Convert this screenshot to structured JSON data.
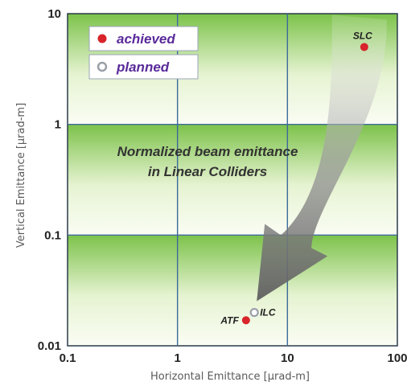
{
  "chart_data": {
    "type": "scatter",
    "title": "",
    "annotation": [
      "Normalized  beam  emittance",
      "in  Linear  Colliders"
    ],
    "xlabel": "Horizontal Emittance  [µrad-m]",
    "ylabel": "Vertical Emittance  [µrad-m]",
    "x_scale": "log",
    "y_scale": "log",
    "xlim": [
      0.1,
      100
    ],
    "ylim": [
      0.01,
      10
    ],
    "x_ticks": [
      {
        "value": 0.1,
        "label": "0.1"
      },
      {
        "value": 1,
        "label": "1"
      },
      {
        "value": 10,
        "label": "10"
      },
      {
        "value": 100,
        "label": "100"
      }
    ],
    "y_ticks": [
      {
        "value": 0.01,
        "label": "0.01"
      },
      {
        "value": 0.1,
        "label": "0.1"
      },
      {
        "value": 1,
        "label": "1"
      },
      {
        "value": 10,
        "label": "10"
      }
    ],
    "grid": true,
    "legend": {
      "position": "top-left",
      "entries": [
        {
          "label": "achieved",
          "marker": "filled",
          "color": "#d8242a"
        },
        {
          "label": "planned",
          "marker": "open",
          "color": "#9aa0a8"
        }
      ]
    },
    "points": [
      {
        "label": "SLC",
        "x": 50,
        "y": 5,
        "status": "achieved",
        "color": "#d8242a"
      },
      {
        "label": "ATF",
        "x": 4.2,
        "y": 0.017,
        "status": "achieved",
        "color": "#d8242a"
      },
      {
        "label": "ILC",
        "x": 5,
        "y": 0.02,
        "status": "planned",
        "color": "#9aa0a8"
      }
    ],
    "arrow": {
      "from": "SLC",
      "to": "ILC"
    },
    "colors": {
      "band_green": "#7cc24a",
      "grid": "#3c6a9a"
    }
  }
}
